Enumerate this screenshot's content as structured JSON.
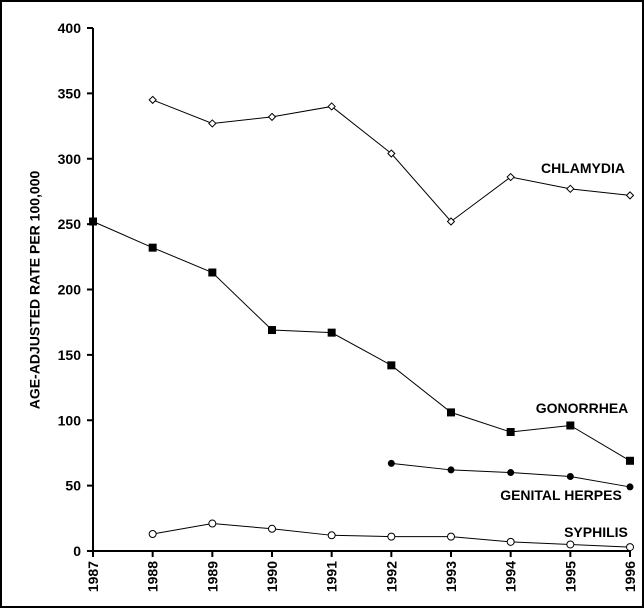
{
  "chart_data": {
    "type": "line",
    "ylabel": "AGE-ADJUSTED RATE PER 100,000",
    "x": [
      1987,
      1988,
      1989,
      1990,
      1991,
      1992,
      1993,
      1994,
      1995,
      1996
    ],
    "xlim": [
      1987,
      1996
    ],
    "xticks": [
      1987,
      1988,
      1989,
      1990,
      1991,
      1992,
      1993,
      1994,
      1995,
      1996
    ],
    "ylim": [
      0,
      400
    ],
    "yticks": [
      0,
      50,
      100,
      150,
      200,
      250,
      300,
      350,
      400
    ],
    "grid": false,
    "series": [
      {
        "name": "CHLAMYDIA",
        "color": "#000000",
        "marker": "diamond-open",
        "values": [
          null,
          345,
          327,
          332,
          340,
          304,
          252,
          286,
          277,
          272
        ]
      },
      {
        "name": "GONORRHEA",
        "color": "#000000",
        "marker": "square",
        "values": [
          252,
          232,
          213,
          169,
          167,
          142,
          106,
          91,
          96,
          69
        ]
      },
      {
        "name": "GENITAL HERPES",
        "color": "#000000",
        "marker": "circle",
        "values": [
          null,
          null,
          null,
          null,
          null,
          67,
          62,
          60,
          57,
          49
        ]
      },
      {
        "name": "SYPHILIS",
        "color": "#000000",
        "marker": "circle-open",
        "values": [
          null,
          13,
          21,
          17,
          12,
          11,
          11,
          7,
          5,
          3
        ]
      }
    ]
  }
}
